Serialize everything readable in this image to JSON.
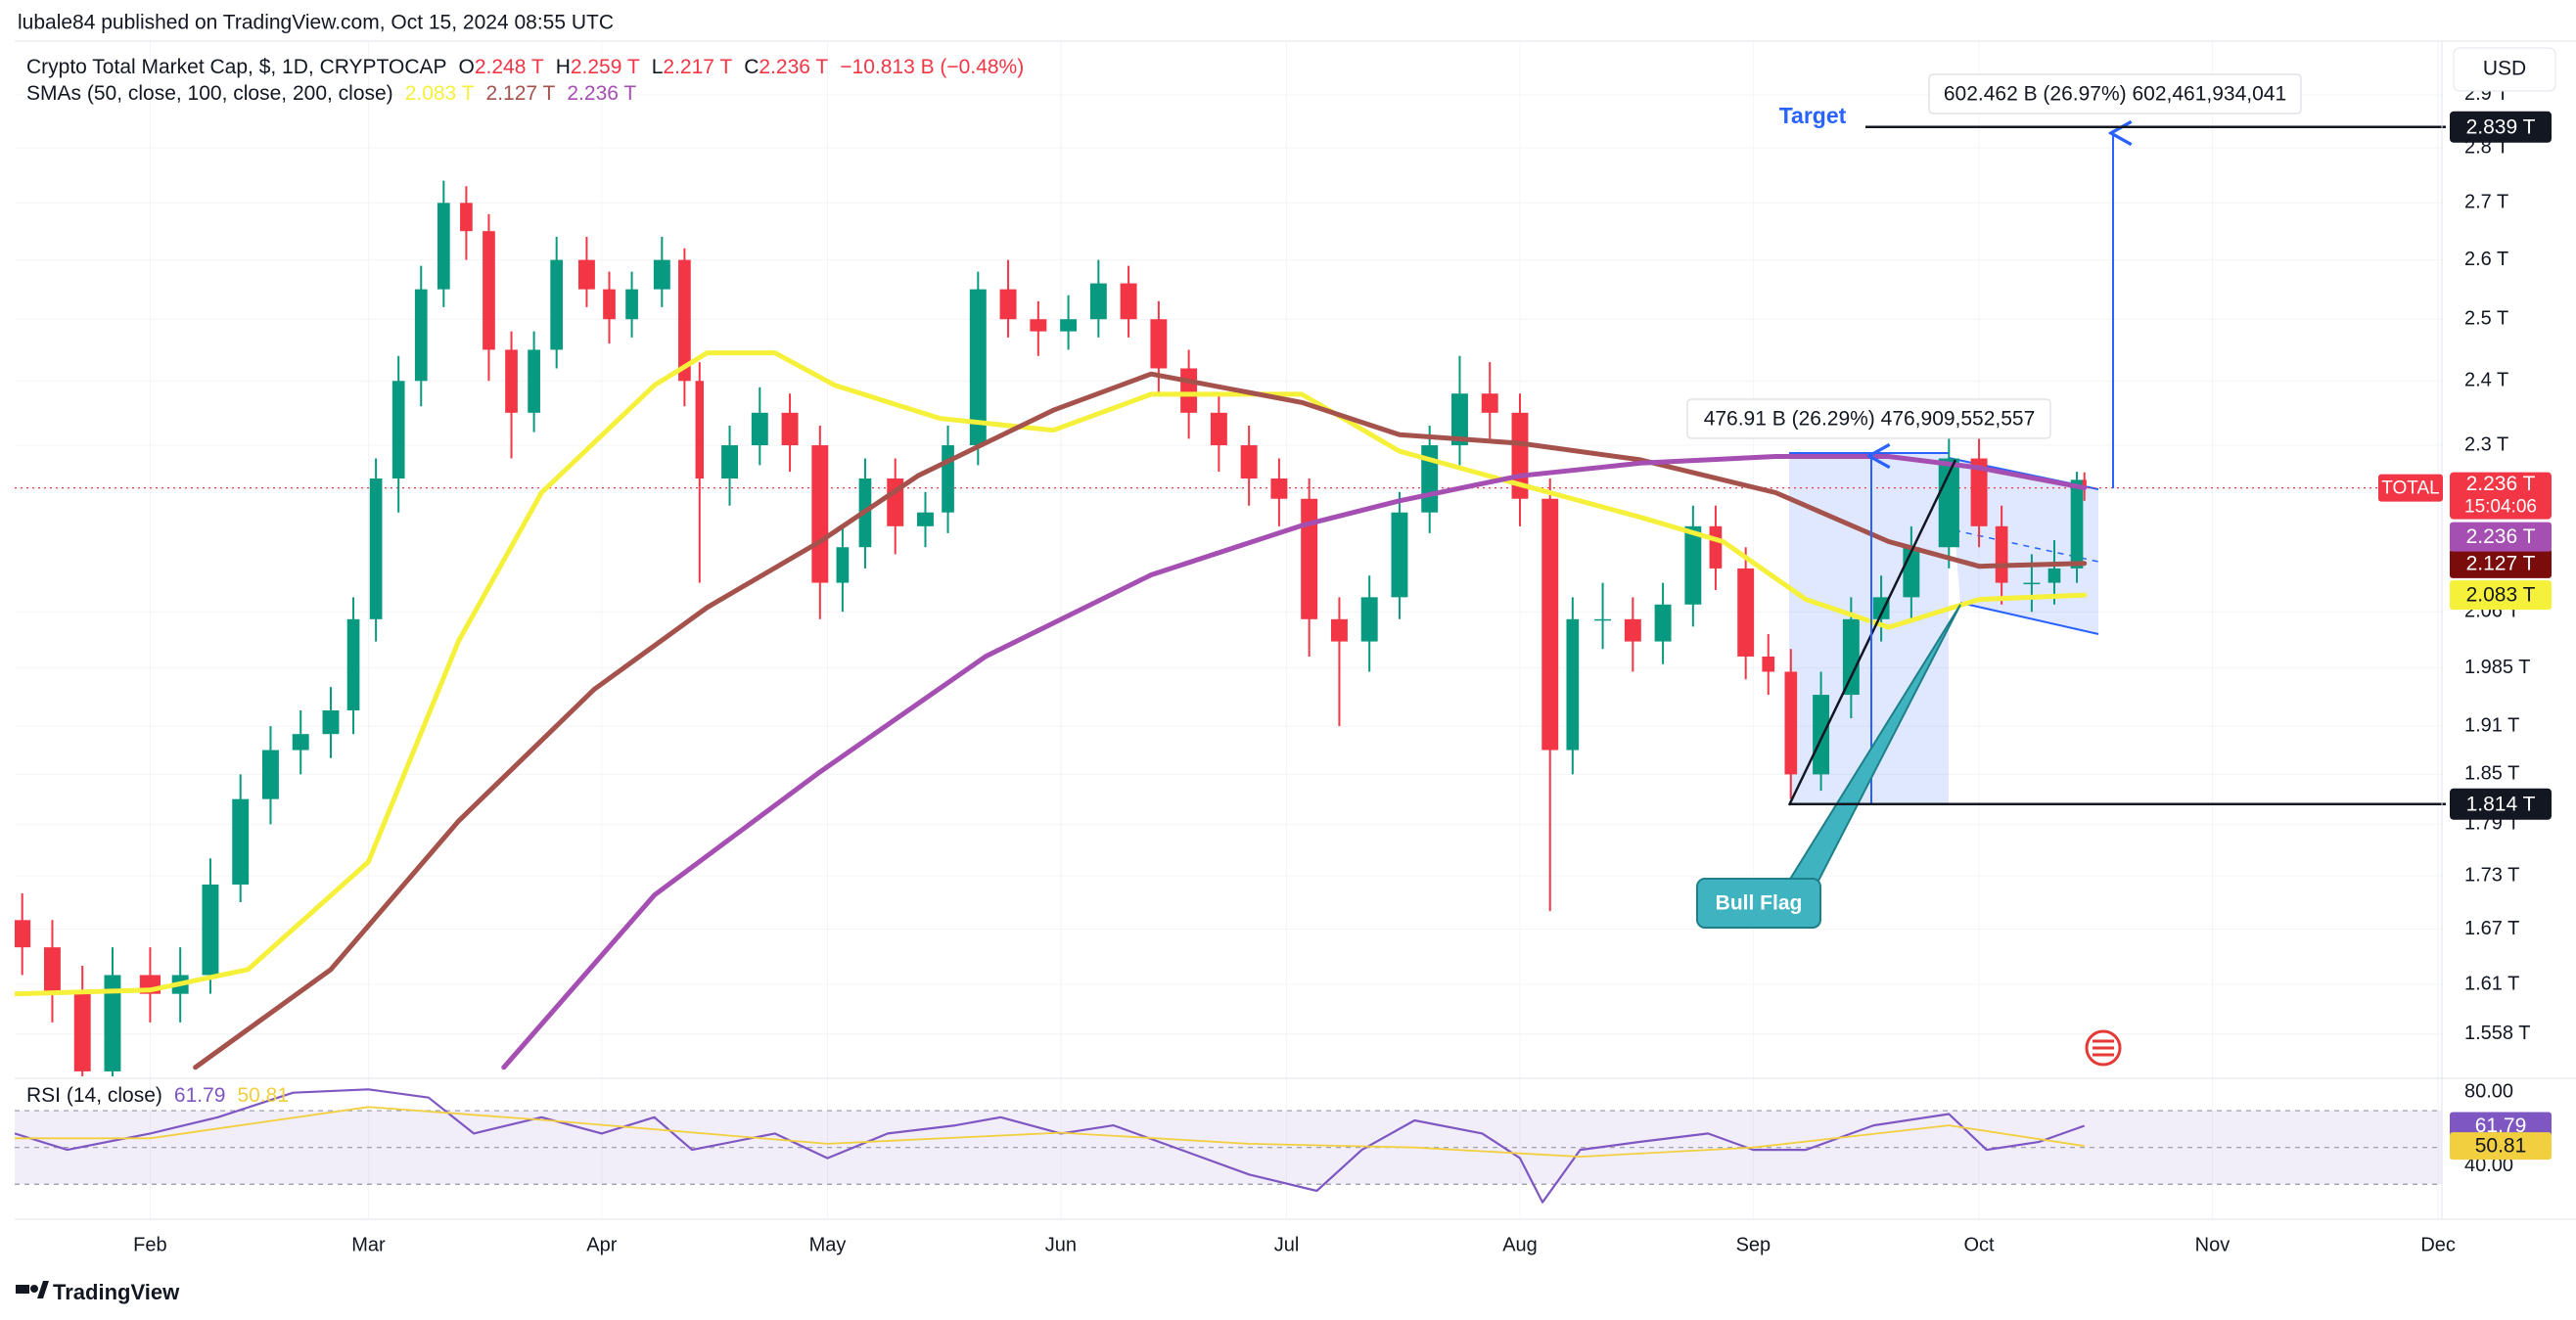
{
  "header": {
    "published": "lubale84 published on TradingView.com, Oct 15, 2024 08:55 UTC",
    "currency": "USD",
    "brand": "TradingView"
  },
  "chart_data": [
    {
      "type": "candlestick",
      "title": "Crypto Total Market Cap, $, 1D, CRYPTOCAP",
      "ohlc_legend": [
        {
          "key": "O",
          "label": "2.248 T"
        },
        {
          "key": "H",
          "label": "2.259 T"
        },
        {
          "key": "L",
          "label": "2.217 T"
        },
        {
          "key": "C",
          "label": "2.236 T"
        }
      ],
      "change": "−10.813 B (−0.48%)",
      "indicator_title": "SMAs (50, close, 100, close, 200, close)",
      "log_scale": true,
      "grid": true,
      "up_color": "#089981",
      "down_color": "#f23645",
      "xlim": [
        13,
        335.5
      ],
      "ylim": [
        1.515,
        3.005
      ],
      "xticks": [
        {
          "value": 31,
          "label": "Feb"
        },
        {
          "value": 60,
          "label": "Mar"
        },
        {
          "value": 91,
          "label": "Apr"
        },
        {
          "value": 121,
          "label": "May"
        },
        {
          "value": 152,
          "label": "Jun"
        },
        {
          "value": 182,
          "label": "Jul"
        },
        {
          "value": 213,
          "label": "Aug"
        },
        {
          "value": 244,
          "label": "Sep"
        },
        {
          "value": 274,
          "label": "Oct"
        },
        {
          "value": 305,
          "label": "Nov"
        },
        {
          "value": 335,
          "label": "Dec"
        }
      ],
      "yticks": [
        {
          "value": 2.9,
          "label": "2.9 T"
        },
        {
          "value": 2.8,
          "label": "2.8 T"
        },
        {
          "value": 2.7,
          "label": "2.7 T"
        },
        {
          "value": 2.6,
          "label": "2.6 T"
        },
        {
          "value": 2.5,
          "label": "2.5 T"
        },
        {
          "value": 2.4,
          "label": "2.4 T"
        },
        {
          "value": 2.3,
          "label": "2.3 T"
        },
        {
          "value": 2.06,
          "label": "2.06 T"
        },
        {
          "value": 1.985,
          "label": "1.985 T"
        },
        {
          "value": 1.91,
          "label": "1.91 T"
        },
        {
          "value": 1.85,
          "label": "1.85 T"
        },
        {
          "value": 1.79,
          "label": "1.79 T"
        },
        {
          "value": 1.73,
          "label": "1.73 T"
        },
        {
          "value": 1.67,
          "label": "1.67 T"
        },
        {
          "value": 1.61,
          "label": "1.61 T"
        },
        {
          "value": 1.558,
          "label": "1.558 T"
        }
      ],
      "x": [
        14,
        18,
        22,
        26,
        31,
        35,
        39,
        43,
        47,
        51,
        55,
        58,
        61,
        64,
        67,
        70,
        73,
        76,
        79,
        82,
        85,
        89,
        92,
        95,
        99,
        102,
        104,
        108,
        112,
        116,
        120,
        123,
        126,
        130,
        134,
        137,
        141,
        145,
        149,
        153,
        157,
        161,
        165,
        169,
        173,
        177,
        181,
        185,
        189,
        193,
        197,
        201,
        205,
        209,
        213,
        217,
        220,
        224,
        228,
        232,
        236,
        239,
        243,
        246,
        249,
        253,
        257,
        261,
        265,
        270,
        274,
        277,
        281,
        284,
        287,
        288
      ],
      "open": [
        1.68,
        1.65,
        1.6,
        1.52,
        1.62,
        1.6,
        1.62,
        1.72,
        1.82,
        1.88,
        1.9,
        1.93,
        2.05,
        2.25,
        2.4,
        2.55,
        2.7,
        2.65,
        2.45,
        2.35,
        2.45,
        2.6,
        2.55,
        2.5,
        2.55,
        2.6,
        2.4,
        2.25,
        2.3,
        2.35,
        2.3,
        2.1,
        2.15,
        2.25,
        2.18,
        2.2,
        2.3,
        2.55,
        2.5,
        2.48,
        2.5,
        2.56,
        2.5,
        2.42,
        2.35,
        2.3,
        2.25,
        2.22,
        2.05,
        2.02,
        2.08,
        2.2,
        2.3,
        2.38,
        2.35,
        2.22,
        1.88,
        2.05,
        2.05,
        2.02,
        2.07,
        2.18,
        2.12,
        2.0,
        1.98,
        1.85,
        1.95,
        2.05,
        2.08,
        2.15,
        2.28,
        2.18,
        2.1,
        2.1,
        2.12,
        2.248
      ],
      "high": [
        1.71,
        1.68,
        1.63,
        1.65,
        1.65,
        1.65,
        1.75,
        1.85,
        1.91,
        1.93,
        1.96,
        2.08,
        2.28,
        2.44,
        2.59,
        2.74,
        2.73,
        2.68,
        2.48,
        2.48,
        2.64,
        2.64,
        2.58,
        2.58,
        2.64,
        2.62,
        2.43,
        2.33,
        2.39,
        2.38,
        2.33,
        2.18,
        2.28,
        2.28,
        2.23,
        2.33,
        2.58,
        2.6,
        2.53,
        2.54,
        2.6,
        2.59,
        2.53,
        2.45,
        2.38,
        2.33,
        2.28,
        2.25,
        2.08,
        2.11,
        2.23,
        2.33,
        2.44,
        2.43,
        2.38,
        2.25,
        2.08,
        2.1,
        2.08,
        2.1,
        2.21,
        2.21,
        2.15,
        2.03,
        2.01,
        1.98,
        2.08,
        2.11,
        2.18,
        2.31,
        2.31,
        2.21,
        2.14,
        2.16,
        2.26,
        2.259
      ],
      "low": [
        1.62,
        1.57,
        1.5,
        1.5,
        1.57,
        1.57,
        1.6,
        1.7,
        1.79,
        1.85,
        1.87,
        1.9,
        2.02,
        2.2,
        2.36,
        2.52,
        2.6,
        2.4,
        2.28,
        2.32,
        2.42,
        2.52,
        2.46,
        2.47,
        2.52,
        2.36,
        2.1,
        2.21,
        2.27,
        2.26,
        2.05,
        2.06,
        2.12,
        2.14,
        2.15,
        2.17,
        2.27,
        2.47,
        2.44,
        2.45,
        2.47,
        2.47,
        2.38,
        2.31,
        2.26,
        2.21,
        2.18,
        2.0,
        1.91,
        1.98,
        2.05,
        2.17,
        2.27,
        2.31,
        2.18,
        1.69,
        1.85,
        2.01,
        1.98,
        1.99,
        2.04,
        2.09,
        1.97,
        1.95,
        1.82,
        1.83,
        1.92,
        2.02,
        2.05,
        2.12,
        2.15,
        2.07,
        2.06,
        2.07,
        2.1,
        2.217
      ],
      "close": [
        1.65,
        1.6,
        1.52,
        1.62,
        1.6,
        1.62,
        1.72,
        1.82,
        1.88,
        1.9,
        1.93,
        2.05,
        2.25,
        2.4,
        2.55,
        2.7,
        2.65,
        2.45,
        2.35,
        2.45,
        2.6,
        2.55,
        2.5,
        2.55,
        2.6,
        2.4,
        2.25,
        2.3,
        2.35,
        2.3,
        2.1,
        2.15,
        2.25,
        2.18,
        2.2,
        2.3,
        2.55,
        2.5,
        2.48,
        2.5,
        2.56,
        2.5,
        2.42,
        2.35,
        2.3,
        2.25,
        2.22,
        2.05,
        2.02,
        2.08,
        2.2,
        2.3,
        2.38,
        2.35,
        2.22,
        1.88,
        2.05,
        2.05,
        2.02,
        2.07,
        2.18,
        2.12,
        2.0,
        1.98,
        1.85,
        1.95,
        2.05,
        2.08,
        2.15,
        2.28,
        2.18,
        2.1,
        2.1,
        2.12,
        2.248,
        2.236
      ],
      "series": [
        {
          "color": "#f5f03a",
          "label": "2.083 T",
          "x": [
            13,
            31,
            44,
            60,
            72,
            83,
            98,
            105,
            114,
            122,
            136,
            151,
            164,
            184,
            197,
            213,
            229,
            240,
            251,
            262,
            274,
            288
          ],
          "values": [
            1.6,
            1.604,
            1.626,
            1.746,
            2.021,
            2.229,
            2.393,
            2.445,
            2.445,
            2.393,
            2.341,
            2.323,
            2.379,
            2.379,
            2.291,
            2.241,
            2.193,
            2.158,
            2.077,
            2.039,
            2.077,
            2.083
          ]
        },
        {
          "color": "#a5524c",
          "label": "2.127 T",
          "x": [
            37,
            55,
            72,
            90,
            105,
            120,
            133,
            151,
            164,
            184,
            197,
            213,
            229,
            247,
            262,
            274,
            288
          ],
          "values": [
            1.524,
            1.626,
            1.794,
            1.957,
            2.066,
            2.158,
            2.254,
            2.354,
            2.411,
            2.366,
            2.316,
            2.303,
            2.278,
            2.229,
            2.158,
            2.123,
            2.127
          ]
        },
        {
          "color": "#a54fb3",
          "label": "2.236 T",
          "x": [
            78,
            98,
            120,
            142,
            164,
            184,
            197,
            213,
            229,
            247,
            262,
            274,
            288
          ],
          "values": [
            1.524,
            1.708,
            1.853,
            2.0,
            2.111,
            2.181,
            2.217,
            2.254,
            2.273,
            2.283,
            2.283,
            2.266,
            2.236
          ]
        }
      ],
      "last_price": {
        "name": "TOTAL",
        "value": 2.236,
        "label": "2.236 T",
        "countdown": "15:04:06"
      },
      "annotations": {
        "target_text": "Target",
        "target_measure": "602.462 B (26.97%) 602,461,934,041",
        "pole_measure": "476.91 B (26.29%) 476,909,552,557",
        "flag_label": "Bull Flag",
        "target_level": {
          "value": 2.839,
          "label": "2.839 T"
        },
        "base_level": {
          "value": 1.814,
          "label": "1.814 T"
        }
      }
    },
    {
      "type": "line",
      "title": "RSI (14, close)",
      "ylim": [
        11,
        86
      ],
      "yticks": [
        {
          "value": 80,
          "label": "80.00"
        },
        {
          "value": 40,
          "label": "40.00"
        }
      ],
      "bands": [
        30,
        70
      ],
      "midline": 50,
      "band_color": "#7e57c2",
      "series": [
        {
          "color": "#7e57c2",
          "label": "61.79",
          "x": [
            13,
            20,
            31,
            40,
            50,
            60,
            68,
            74,
            83,
            91,
            98,
            103,
            114,
            121,
            129,
            138,
            144,
            152,
            159,
            168,
            177,
            186,
            192,
            199,
            208,
            213,
            216,
            221,
            229,
            238,
            244,
            251,
            260,
            270,
            275,
            282,
            288
          ],
          "values": [
            57.6,
            48.7,
            57.6,
            66.4,
            79.8,
            81.6,
            77.1,
            57.6,
            66.4,
            57.6,
            66.4,
            48.7,
            57.6,
            44.2,
            57.6,
            62,
            66.4,
            57.6,
            62,
            48.7,
            35.3,
            26.4,
            48.7,
            64.7,
            57.6,
            44.2,
            20.2,
            48.7,
            53.1,
            57.6,
            48.7,
            48.7,
            62,
            68.2,
            48.7,
            53.1,
            61.79
          ]
        },
        {
          "color": "#f2cf3f",
          "label": "50.81",
          "x": [
            13,
            31,
            60,
            83,
            121,
            152,
            177,
            199,
            221,
            244,
            270,
            288
          ],
          "values": [
            55,
            55,
            72,
            65,
            52,
            58,
            52,
            50,
            45,
            50,
            62,
            50.81
          ]
        }
      ]
    }
  ]
}
